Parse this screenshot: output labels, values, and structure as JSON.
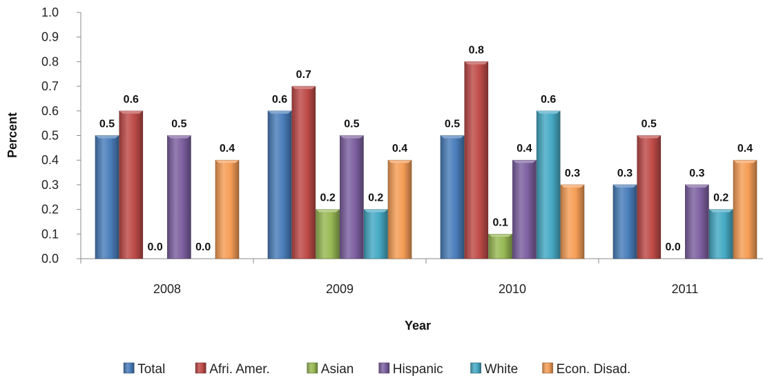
{
  "chart_data": {
    "type": "bar",
    "title": "",
    "xlabel": "Year",
    "ylabel": "Percent",
    "categories": [
      "2008",
      "2009",
      "2010",
      "2011"
    ],
    "ylim": [
      0,
      1.0
    ],
    "yticks": [
      "0.0",
      "0.1",
      "0.2",
      "0.3",
      "0.4",
      "0.5",
      "0.6",
      "0.7",
      "0.8",
      "0.9",
      "1.0"
    ],
    "grid": false,
    "legend_position": "bottom",
    "series": [
      {
        "name": "Total",
        "color": "#4a7ebb",
        "values": [
          0.5,
          0.6,
          0.5,
          0.3
        ],
        "labels": [
          "0.5",
          "0.6",
          "0.5",
          "0.3"
        ]
      },
      {
        "name": "Afri. Amer.",
        "color": "#be4b48",
        "values": [
          0.6,
          0.7,
          0.8,
          0.5
        ],
        "labels": [
          "0.6",
          "0.7",
          "0.8",
          "0.5"
        ]
      },
      {
        "name": "Asian",
        "color": "#98b954",
        "values": [
          0.0,
          0.2,
          0.1,
          0.0
        ],
        "labels": [
          "0.0",
          "0.2",
          "0.1",
          "0.0"
        ]
      },
      {
        "name": "Hispanic",
        "color": "#7d60a0",
        "values": [
          0.5,
          0.5,
          0.4,
          0.3
        ],
        "labels": [
          "0.5",
          "0.5",
          "0.4",
          "0.3"
        ]
      },
      {
        "name": "White",
        "color": "#46aac5",
        "values": [
          0.0,
          0.2,
          0.6,
          0.2
        ],
        "labels": [
          "0.0",
          "0.2",
          "0.6",
          "0.2"
        ]
      },
      {
        "name": "Econ. Disad.",
        "color": "#f59d56",
        "values": [
          0.4,
          0.4,
          0.3,
          0.4
        ],
        "labels": [
          "0.4",
          "0.4",
          "0.3",
          "0.4"
        ]
      }
    ]
  }
}
